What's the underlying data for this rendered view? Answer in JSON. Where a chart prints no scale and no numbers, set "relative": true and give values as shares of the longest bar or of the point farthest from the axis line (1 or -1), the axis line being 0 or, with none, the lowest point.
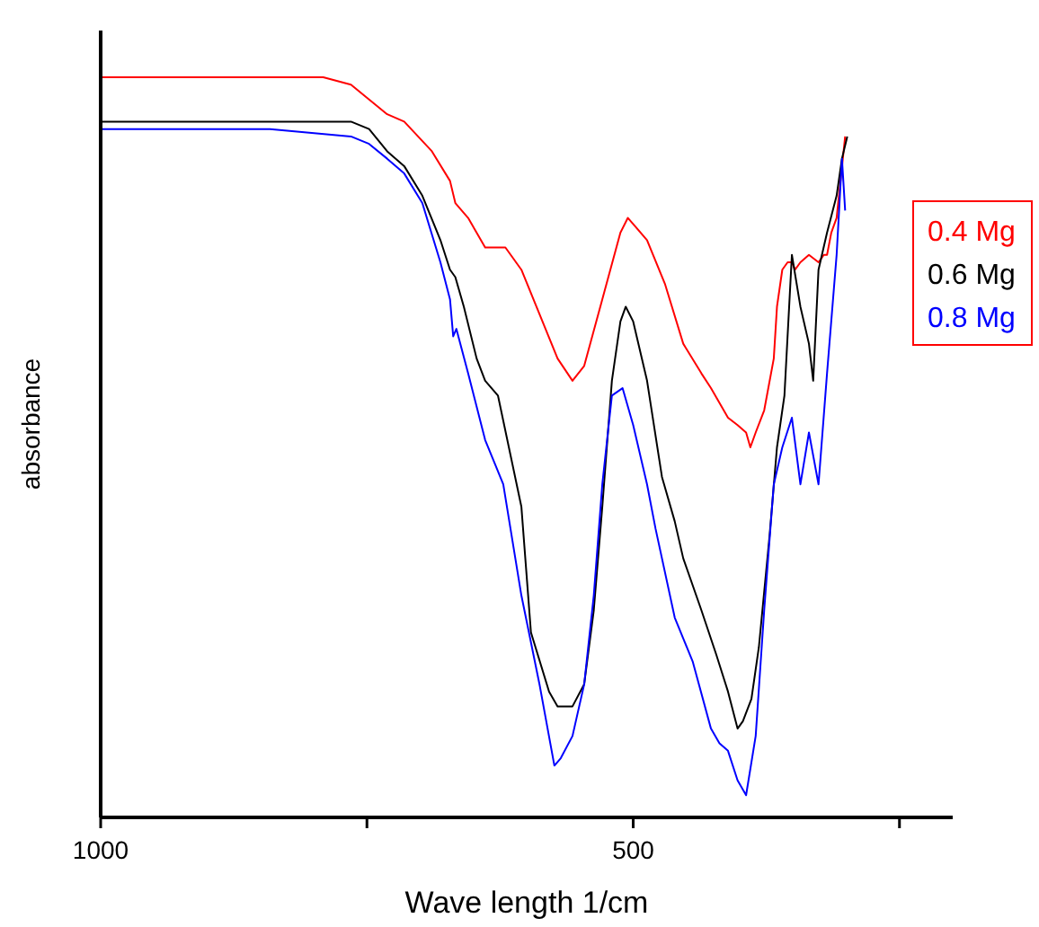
{
  "chart_data": {
    "type": "line",
    "relative": true,
    "xlabel": "Wave length 1/cm",
    "ylabel": "absorbance",
    "xlim": [
      1000,
      200
    ],
    "xticks": [
      1000,
      {
        "value": 750,
        "label": null
      },
      500,
      {
        "value": 250,
        "label": null
      }
    ],
    "legend": "right",
    "grid": false,
    "marker": "none",
    "line_style": "solid",
    "series": [
      {
        "name": "0.4 Mg",
        "color": "#ff0000",
        "x": [
          1000,
          841,
          791,
          765,
          748,
          731,
          715,
          689,
          672,
          667,
          655,
          639,
          628,
          620,
          605,
          588,
          571,
          557,
          546,
          529,
          512,
          505,
          487,
          470,
          453,
          436,
          427,
          419,
          411,
          402,
          394,
          390,
          385,
          377,
          368,
          365,
          360,
          355,
          351,
          348,
          343,
          335,
          326,
          321,
          318,
          314,
          309,
          301
        ],
        "values": [
          1.0,
          1.0,
          1.0,
          0.99,
          0.97,
          0.95,
          0.94,
          0.9,
          0.86,
          0.83,
          0.81,
          0.77,
          0.77,
          0.77,
          0.74,
          0.68,
          0.62,
          0.59,
          0.61,
          0.7,
          0.79,
          0.81,
          0.78,
          0.72,
          0.64,
          0.6,
          0.58,
          0.56,
          0.54,
          0.53,
          0.52,
          0.5,
          0.52,
          0.55,
          0.62,
          0.69,
          0.74,
          0.75,
          0.75,
          0.74,
          0.75,
          0.76,
          0.75,
          0.76,
          0.76,
          0.79,
          0.81,
          0.92
        ]
      },
      {
        "name": "0.6 Mg",
        "color": "#000000",
        "x": [
          1000,
          841,
          765,
          748,
          731,
          715,
          698,
          681,
          672,
          667,
          659,
          647,
          639,
          627,
          605,
          596,
          579,
          571,
          557,
          546,
          537,
          529,
          520,
          512,
          507,
          500,
          487,
          473,
          461,
          453,
          436,
          422,
          411,
          402,
          397,
          389,
          382,
          372,
          365,
          358,
          351,
          343,
          335,
          331,
          326,
          318,
          309,
          304,
          299
        ],
        "values": [
          0.94,
          0.94,
          0.94,
          0.93,
          0.9,
          0.88,
          0.84,
          0.78,
          0.74,
          0.73,
          0.69,
          0.62,
          0.59,
          0.57,
          0.42,
          0.25,
          0.17,
          0.15,
          0.15,
          0.18,
          0.28,
          0.42,
          0.59,
          0.67,
          0.69,
          0.67,
          0.59,
          0.46,
          0.4,
          0.35,
          0.28,
          0.22,
          0.17,
          0.12,
          0.13,
          0.16,
          0.23,
          0.38,
          0.5,
          0.57,
          0.76,
          0.69,
          0.64,
          0.59,
          0.74,
          0.79,
          0.84,
          0.89,
          0.92
        ]
      },
      {
        "name": "0.8 Mg",
        "color": "#0000ff",
        "x": [
          1000,
          841,
          765,
          748,
          731,
          715,
          698,
          681,
          672,
          669,
          666,
          655,
          639,
          622,
          605,
          588,
          574,
          568,
          557,
          546,
          537,
          529,
          520,
          510,
          500,
          487,
          479,
          461,
          444,
          427,
          419,
          411,
          402,
          394,
          385,
          377,
          368,
          360,
          351,
          343,
          335,
          326,
          318,
          309,
          304,
          301
        ],
        "values": [
          0.93,
          0.93,
          0.92,
          0.91,
          0.89,
          0.87,
          0.83,
          0.75,
          0.7,
          0.65,
          0.66,
          0.6,
          0.51,
          0.45,
          0.3,
          0.18,
          0.07,
          0.08,
          0.11,
          0.18,
          0.3,
          0.45,
          0.57,
          0.58,
          0.53,
          0.45,
          0.39,
          0.27,
          0.21,
          0.12,
          0.1,
          0.09,
          0.05,
          0.03,
          0.11,
          0.28,
          0.45,
          0.5,
          0.54,
          0.45,
          0.52,
          0.45,
          0.6,
          0.76,
          0.89,
          0.82
        ]
      }
    ]
  }
}
